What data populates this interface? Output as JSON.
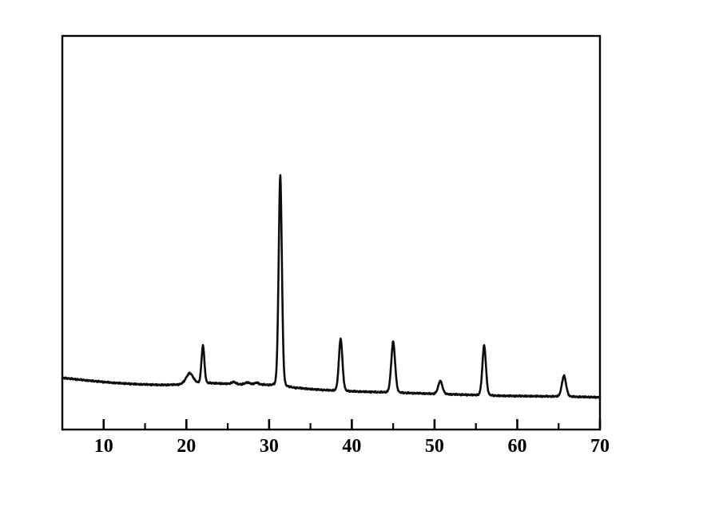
{
  "figure": {
    "background_color": "#ffffff",
    "trace_color": "#0d0d0d",
    "axis_color": "#000000"
  },
  "chart_data": {
    "type": "line",
    "title": "",
    "subtitle": "",
    "xlabel": "",
    "ylabel": "",
    "legend": null,
    "grid": false,
    "series_name": "xrd-intensity-trace",
    "xlim": [
      5,
      70
    ],
    "ylim": [
      0,
      105
    ],
    "x_major_ticks": [
      10,
      20,
      30,
      40,
      50,
      60,
      70
    ],
    "x_minor_ticks": [
      15,
      25,
      35,
      45,
      55,
      65
    ],
    "x_tick_labels": [
      "10",
      "20",
      "30",
      "40",
      "50",
      "60",
      "70"
    ],
    "y_ticks": [],
    "baseline_points": [
      [
        5,
        13.8
      ],
      [
        8,
        13.1
      ],
      [
        11,
        12.5
      ],
      [
        14,
        12.1
      ],
      [
        17,
        11.9
      ],
      [
        19.3,
        12.0
      ],
      [
        21,
        12.2
      ],
      [
        23,
        12.4
      ],
      [
        26,
        12.1
      ],
      [
        29,
        12.0
      ],
      [
        31,
        11.8
      ],
      [
        33,
        11.2
      ],
      [
        35,
        10.8
      ],
      [
        37,
        10.5
      ],
      [
        40,
        10.2
      ],
      [
        43,
        10.0
      ],
      [
        46,
        9.8
      ],
      [
        49,
        9.6
      ],
      [
        52,
        9.4
      ],
      [
        55,
        9.2
      ],
      [
        58,
        9.0
      ],
      [
        62,
        8.9
      ],
      [
        66,
        8.8
      ],
      [
        70,
        8.6
      ]
    ],
    "peaks": [
      {
        "center": 20.4,
        "height": 2.9,
        "sigma": 0.45
      },
      {
        "center": 22.0,
        "height": 10.2,
        "sigma": 0.18
      },
      {
        "center": 25.7,
        "height": 0.6,
        "sigma": 0.25
      },
      {
        "center": 27.4,
        "height": 0.5,
        "sigma": 0.3
      },
      {
        "center": 28.5,
        "height": 0.5,
        "sigma": 0.25
      },
      {
        "center": 31.35,
        "height": 56.5,
        "sigma": 0.2
      },
      {
        "center": 38.65,
        "height": 14.0,
        "sigma": 0.22
      },
      {
        "center": 45.0,
        "height": 13.6,
        "sigma": 0.24
      },
      {
        "center": 50.7,
        "height": 3.5,
        "sigma": 0.26
      },
      {
        "center": 56.0,
        "height": 13.4,
        "sigma": 0.22
      },
      {
        "center": 65.65,
        "height": 5.6,
        "sigma": 0.26
      }
    ]
  }
}
